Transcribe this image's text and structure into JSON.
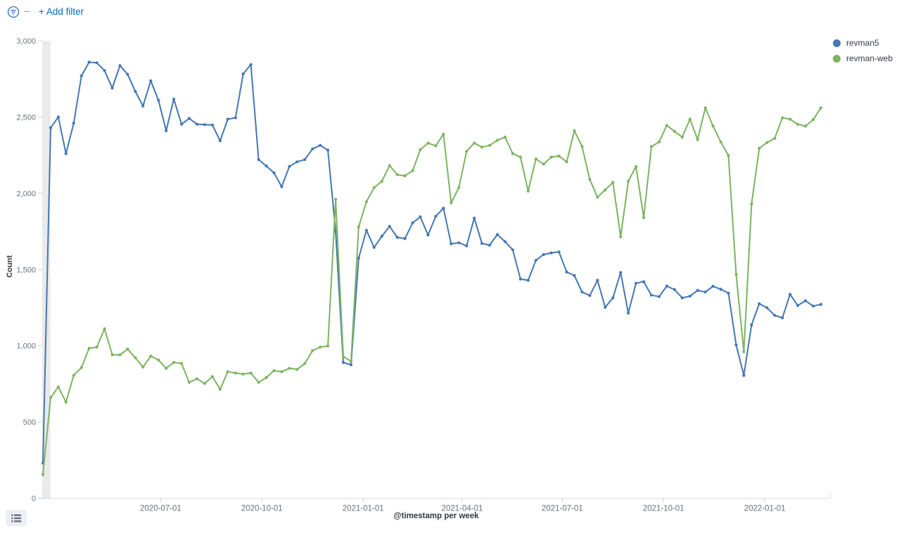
{
  "topbar": {
    "add_filter_label": "+ Add filter",
    "accent_color": "#006BB4",
    "filter_icon": "filter-funnel-in-circle"
  },
  "icons": {
    "legend_toggle": "list-icon"
  },
  "chart_data": {
    "type": "line",
    "title": "",
    "xlabel": "@timestamp per week",
    "ylabel": "Count",
    "ylim": [
      0,
      3000
    ],
    "grid": false,
    "legend_position": "top-right",
    "partial_bucket_band_color": "#EAEAEA",
    "axis_line_color": "#D3DAE6",
    "tick_text_color": "#69707D",
    "y_ticks": [
      0,
      500,
      1000,
      1500,
      2000,
      2500,
      3000
    ],
    "y_tick_labels": [
      "0",
      "500",
      "1,000",
      "1,500",
      "2,000",
      "2,500",
      "3,000"
    ],
    "x_tick_labels": [
      "2020-07-01",
      "2020-10-01",
      "2021-01-01",
      "2021-04-01",
      "2021-07-01",
      "2021-10-01",
      "2022-01-01"
    ],
    "x_start": "2020-03-16",
    "x_interval": "week",
    "series": [
      {
        "name": "revman5",
        "color": "#4477B3",
        "values": [
          230,
          2430,
          2500,
          2260,
          2460,
          2770,
          2860,
          2855,
          2805,
          2690,
          2837,
          2780,
          2668,
          2572,
          2737,
          2610,
          2410,
          2617,
          2453,
          2491,
          2453,
          2450,
          2448,
          2344,
          2486,
          2495,
          2783,
          2844,
          2221,
          2179,
          2134,
          2043,
          2176,
          2206,
          2221,
          2291,
          2314,
          2283,
          1750,
          890,
          875,
          1575,
          1757,
          1645,
          1718,
          1783,
          1711,
          1702,
          1806,
          1845,
          1726,
          1849,
          1902,
          1668,
          1675,
          1655,
          1837,
          1671,
          1660,
          1729,
          1683,
          1629,
          1437,
          1429,
          1560,
          1598,
          1609,
          1615,
          1483,
          1460,
          1352,
          1329,
          1429,
          1252,
          1314,
          1480,
          1214,
          1410,
          1420,
          1332,
          1322,
          1391,
          1368,
          1314,
          1325,
          1363,
          1352,
          1390,
          1370,
          1345,
          1005,
          805,
          1137,
          1275,
          1249,
          1199,
          1183,
          1337,
          1264,
          1295,
          1260,
          1271
        ]
      },
      {
        "name": "revman-web",
        "color": "#7CB45F",
        "values": [
          155,
          660,
          730,
          630,
          806,
          857,
          983,
          991,
          1111,
          941,
          940,
          978,
          921,
          860,
          932,
          906,
          852,
          891,
          883,
          760,
          783,
          752,
          798,
          714,
          829,
          821,
          814,
          821,
          760,
          791,
          837,
          829,
          852,
          845,
          883,
          968,
          991,
          998,
          1960,
          929,
          898,
          1780,
          1945,
          2037,
          2078,
          2182,
          2122,
          2114,
          2148,
          2286,
          2329,
          2311,
          2388,
          1937,
          2037,
          2275,
          2329,
          2302,
          2314,
          2348,
          2368,
          2260,
          2237,
          2014,
          2225,
          2191,
          2237,
          2244,
          2206,
          2410,
          2306,
          2091,
          1975,
          2022,
          2071,
          1714,
          2080,
          2175,
          1840,
          2306,
          2337,
          2445,
          2406,
          2368,
          2486,
          2352,
          2560,
          2440,
          2337,
          2248,
          1468,
          960,
          1929,
          2295,
          2332,
          2360,
          2495,
          2486,
          2452,
          2440,
          2483,
          2560
        ]
      }
    ]
  }
}
